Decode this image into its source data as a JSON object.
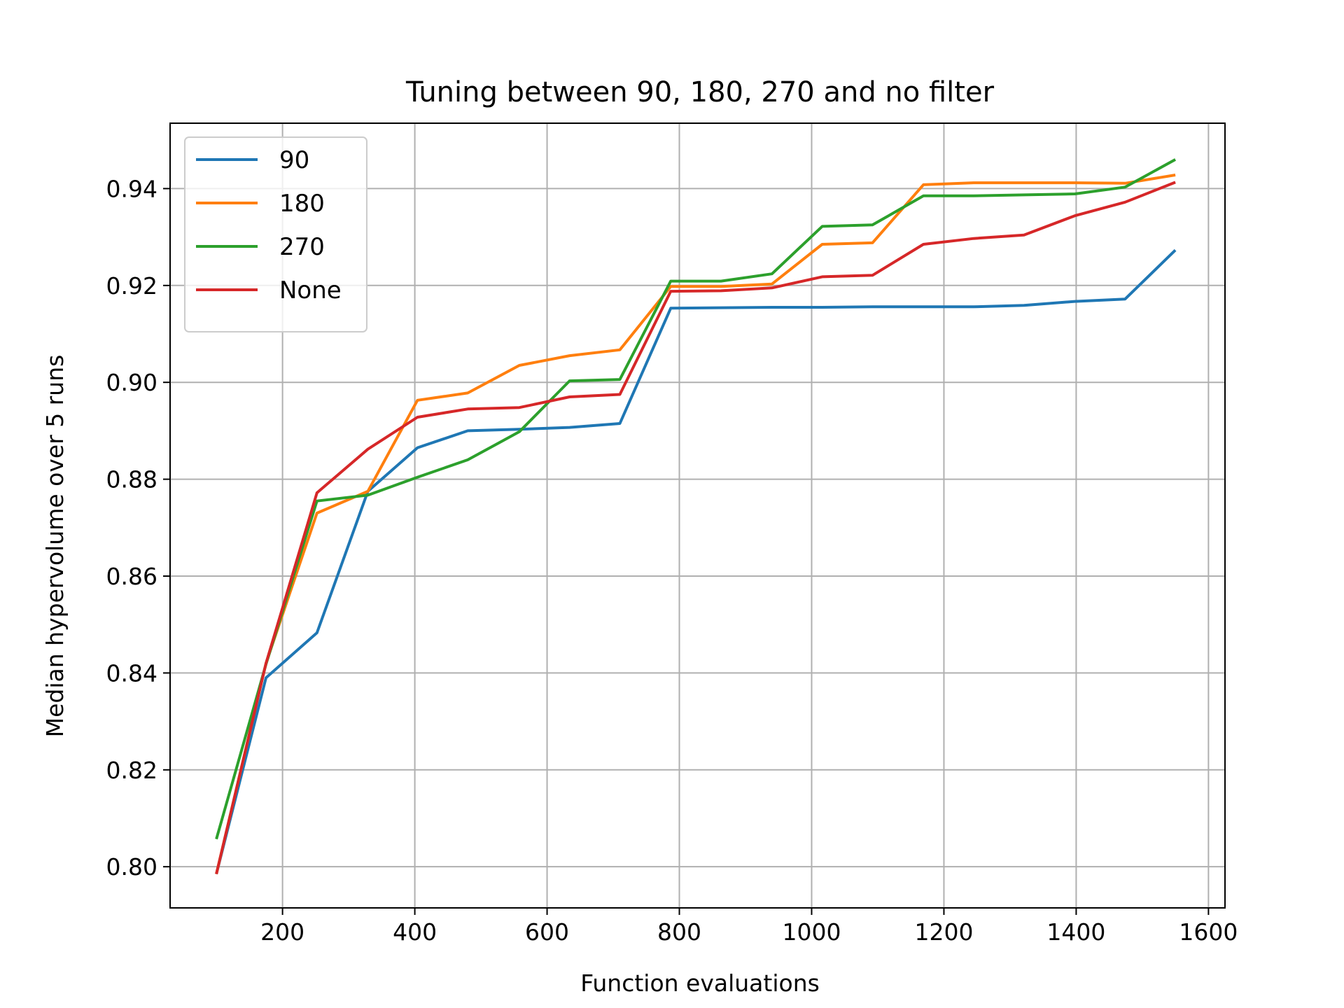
{
  "chart_data": {
    "type": "line",
    "title": "Tuning between 90, 180, 270 and no filter",
    "xlabel": "Function evaluations",
    "ylabel": "Median hypervolume over 5 runs",
    "xlim": [
      30,
      1625
    ],
    "ylim": [
      0.7915,
      0.9535
    ],
    "xticks": [
      200,
      400,
      600,
      800,
      1000,
      1200,
      1400,
      1600
    ],
    "xtick_labels": [
      "200",
      "400",
      "600",
      "800",
      "1000",
      "1200",
      "1400",
      "1600"
    ],
    "yticks": [
      0.8,
      0.82,
      0.84,
      0.86,
      0.88,
      0.9,
      0.92,
      0.94
    ],
    "ytick_labels": [
      "0.80",
      "0.82",
      "0.84",
      "0.86",
      "0.88",
      "0.90",
      "0.92",
      "0.94"
    ],
    "grid": true,
    "legend_position": "top-left",
    "x": [
      100,
      175,
      252,
      329,
      404,
      480,
      558,
      634,
      710,
      787,
      863,
      940,
      1016,
      1092,
      1169,
      1245,
      1321,
      1398,
      1474,
      1550
    ],
    "series": [
      {
        "name": "90",
        "color": "#1f77b4",
        "values": [
          0.7985,
          0.839,
          0.8483,
          0.8775,
          0.8865,
          0.89,
          0.8903,
          0.8907,
          0.8915,
          0.9153,
          0.9154,
          0.9155,
          0.9155,
          0.9156,
          0.9156,
          0.9156,
          0.9159,
          0.9167,
          0.9172,
          0.9273
        ]
      },
      {
        "name": "180",
        "color": "#ff7f0e",
        "values": [
          0.7985,
          0.842,
          0.873,
          0.8775,
          0.8963,
          0.8978,
          0.9035,
          0.9055,
          0.9067,
          0.9198,
          0.9198,
          0.9203,
          0.9285,
          0.9288,
          0.9408,
          0.9412,
          0.9412,
          0.9412,
          0.9411,
          0.9428
        ]
      },
      {
        "name": "270",
        "color": "#2ca02c",
        "values": [
          0.8057,
          0.8418,
          0.8755,
          0.8767,
          0.8804,
          0.884,
          0.8898,
          0.9003,
          0.9006,
          0.9209,
          0.9209,
          0.9224,
          0.9322,
          0.9325,
          0.9385,
          0.9385,
          0.9387,
          0.9389,
          0.9403,
          0.946
        ]
      },
      {
        "name": "None",
        "color": "#d62728",
        "values": [
          0.7985,
          0.842,
          0.8772,
          0.8862,
          0.8928,
          0.8945,
          0.8948,
          0.897,
          0.8975,
          0.9188,
          0.9189,
          0.9195,
          0.9218,
          0.9221,
          0.9285,
          0.9297,
          0.9304,
          0.9344,
          0.9372,
          0.9413
        ]
      }
    ]
  }
}
